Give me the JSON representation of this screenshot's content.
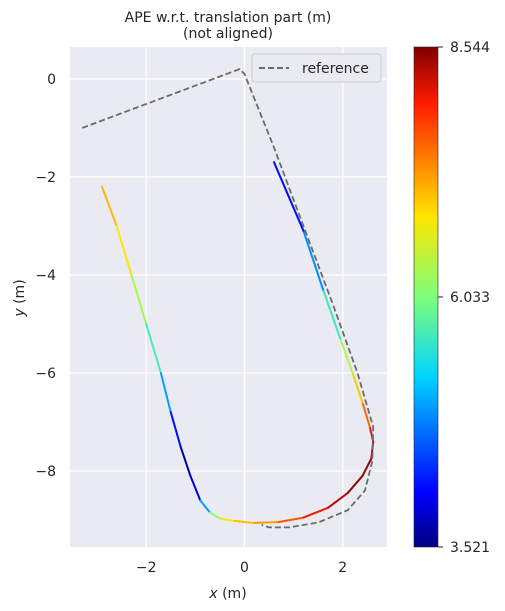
{
  "chart_data": {
    "type": "line",
    "title": "APE w.r.t. translation part (m)",
    "subtitle": "(not aligned)",
    "xlabel_var": "x",
    "xlabel_unit": " (m)",
    "ylabel_var": "y",
    "ylabel_unit": " (m)",
    "xlim": [
      -3.55,
      2.9
    ],
    "ylim": [
      -9.55,
      0.65
    ],
    "xticks": [
      -2,
      0,
      2
    ],
    "xtick_labels": [
      "−2",
      "0",
      "2"
    ],
    "yticks": [
      0,
      -2,
      -4,
      -6,
      -8
    ],
    "ytick_labels": [
      "0",
      "−2",
      "−4",
      "−6",
      "−8"
    ],
    "grid": true,
    "legend_position": "top-right",
    "colorbar": {
      "colormap": "jet",
      "min": 3.521,
      "max": 8.544,
      "ticks": [
        3.521,
        6.033,
        8.544
      ],
      "tick_labels": [
        "3.521",
        "6.033",
        "8.544"
      ]
    },
    "series": [
      {
        "name": "reference",
        "style": "dashed",
        "color": "#6b6b6b",
        "x": [
          -3.3,
          -0.1,
          0.0,
          0.6,
          1.2,
          1.8,
          2.3,
          2.62,
          2.6,
          2.45,
          2.1,
          1.5,
          0.9,
          0.5,
          0.35
        ],
        "y": [
          -1.0,
          0.2,
          0.1,
          -1.4,
          -3.0,
          -4.6,
          -6.0,
          -7.1,
          -7.8,
          -8.4,
          -8.8,
          -9.05,
          -9.15,
          -9.15,
          -9.1
        ]
      },
      {
        "name": "",
        "style": "colormap",
        "x": [
          -2.9,
          -2.6,
          -2.3,
          -2.0,
          -1.7,
          -1.5,
          -1.3,
          -1.1,
          -0.9,
          -0.7,
          -0.5,
          -0.2,
          0.2,
          0.7,
          1.2,
          1.7,
          2.1,
          2.4,
          2.58,
          2.62,
          2.55,
          2.4,
          2.2,
          1.95,
          1.6,
          1.2,
          0.6
        ],
        "y": [
          -2.2,
          -3.0,
          -4.0,
          -5.0,
          -6.0,
          -6.8,
          -7.5,
          -8.1,
          -8.6,
          -8.85,
          -8.97,
          -9.02,
          -9.06,
          -9.04,
          -8.95,
          -8.75,
          -8.45,
          -8.1,
          -7.75,
          -7.4,
          -7.1,
          -6.6,
          -6.0,
          -5.3,
          -4.3,
          -3.1,
          -1.7
        ],
        "values": [
          7.2,
          7.0,
          6.6,
          6.0,
          5.4,
          4.5,
          3.8,
          3.6,
          4.3,
          5.6,
          6.6,
          7.0,
          7.1,
          7.4,
          7.9,
          8.2,
          8.4,
          8.5,
          8.4,
          8.2,
          7.9,
          7.2,
          6.8,
          5.9,
          5.3,
          4.4,
          3.9
        ]
      }
    ]
  }
}
